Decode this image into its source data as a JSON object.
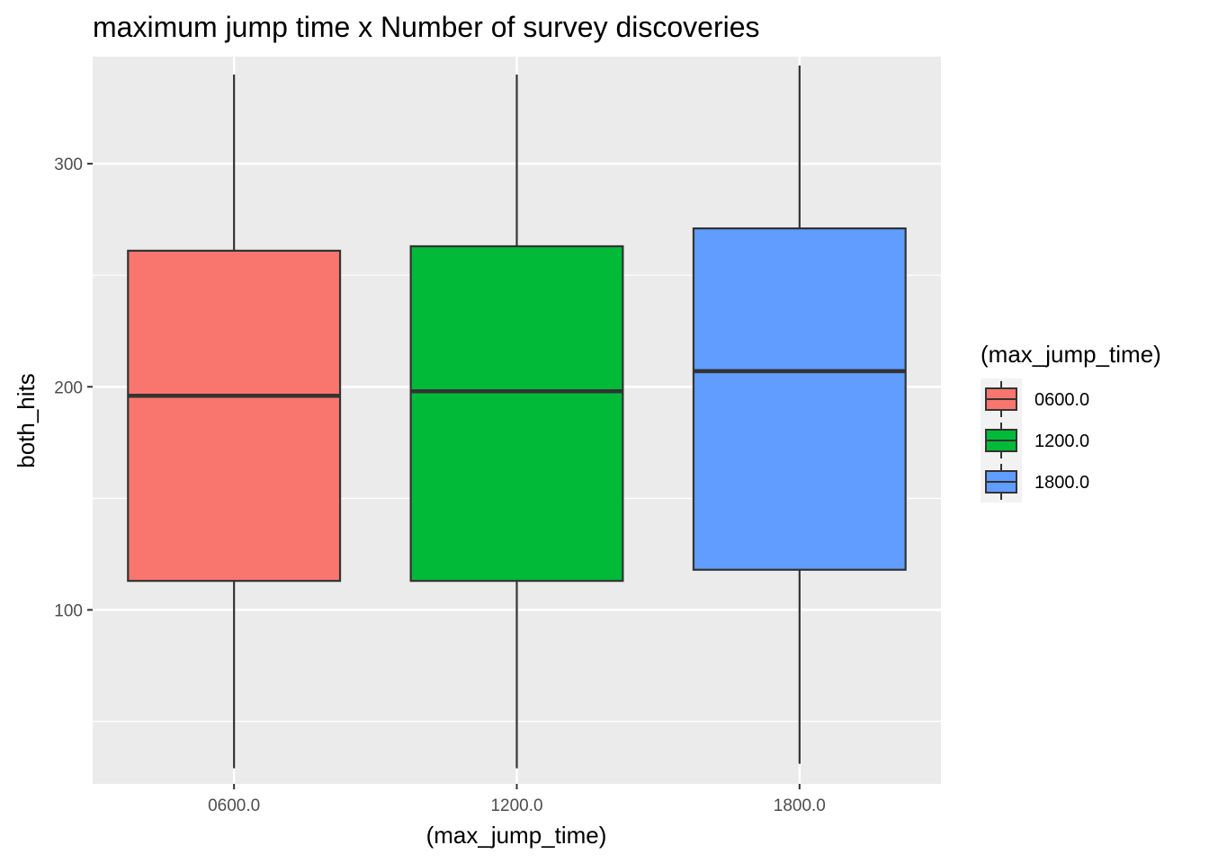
{
  "chart_data": {
    "type": "boxplot",
    "title": "maximum jump time x Number of survey discoveries",
    "xlabel": "(max_jump_time)",
    "ylabel": "both_hits",
    "categories": [
      "0600.0",
      "1200.0",
      "1800.0"
    ],
    "ylim": [
      22,
      348
    ],
    "yticks": [
      100,
      200,
      300
    ],
    "ytick_labels": [
      "100",
      "200",
      "300"
    ],
    "y_minor_ticks": [
      50,
      150,
      250
    ],
    "grid": true,
    "legend": {
      "title": "(max_jump_time)",
      "placement": "right",
      "entries": [
        "0600.0",
        "1200.0",
        "1800.0"
      ]
    },
    "colors": [
      "#F8766D",
      "#00BA38",
      "#619CFF"
    ],
    "series": [
      {
        "category": "0600.0",
        "min": 29,
        "q1": 113,
        "median": 196,
        "q3": 261,
        "max": 340
      },
      {
        "category": "1200.0",
        "min": 29,
        "q1": 113,
        "median": 198,
        "q3": 263,
        "max": 340
      },
      {
        "category": "1800.0",
        "min": 31,
        "q1": 118,
        "median": 207,
        "q3": 271,
        "max": 344
      }
    ]
  }
}
